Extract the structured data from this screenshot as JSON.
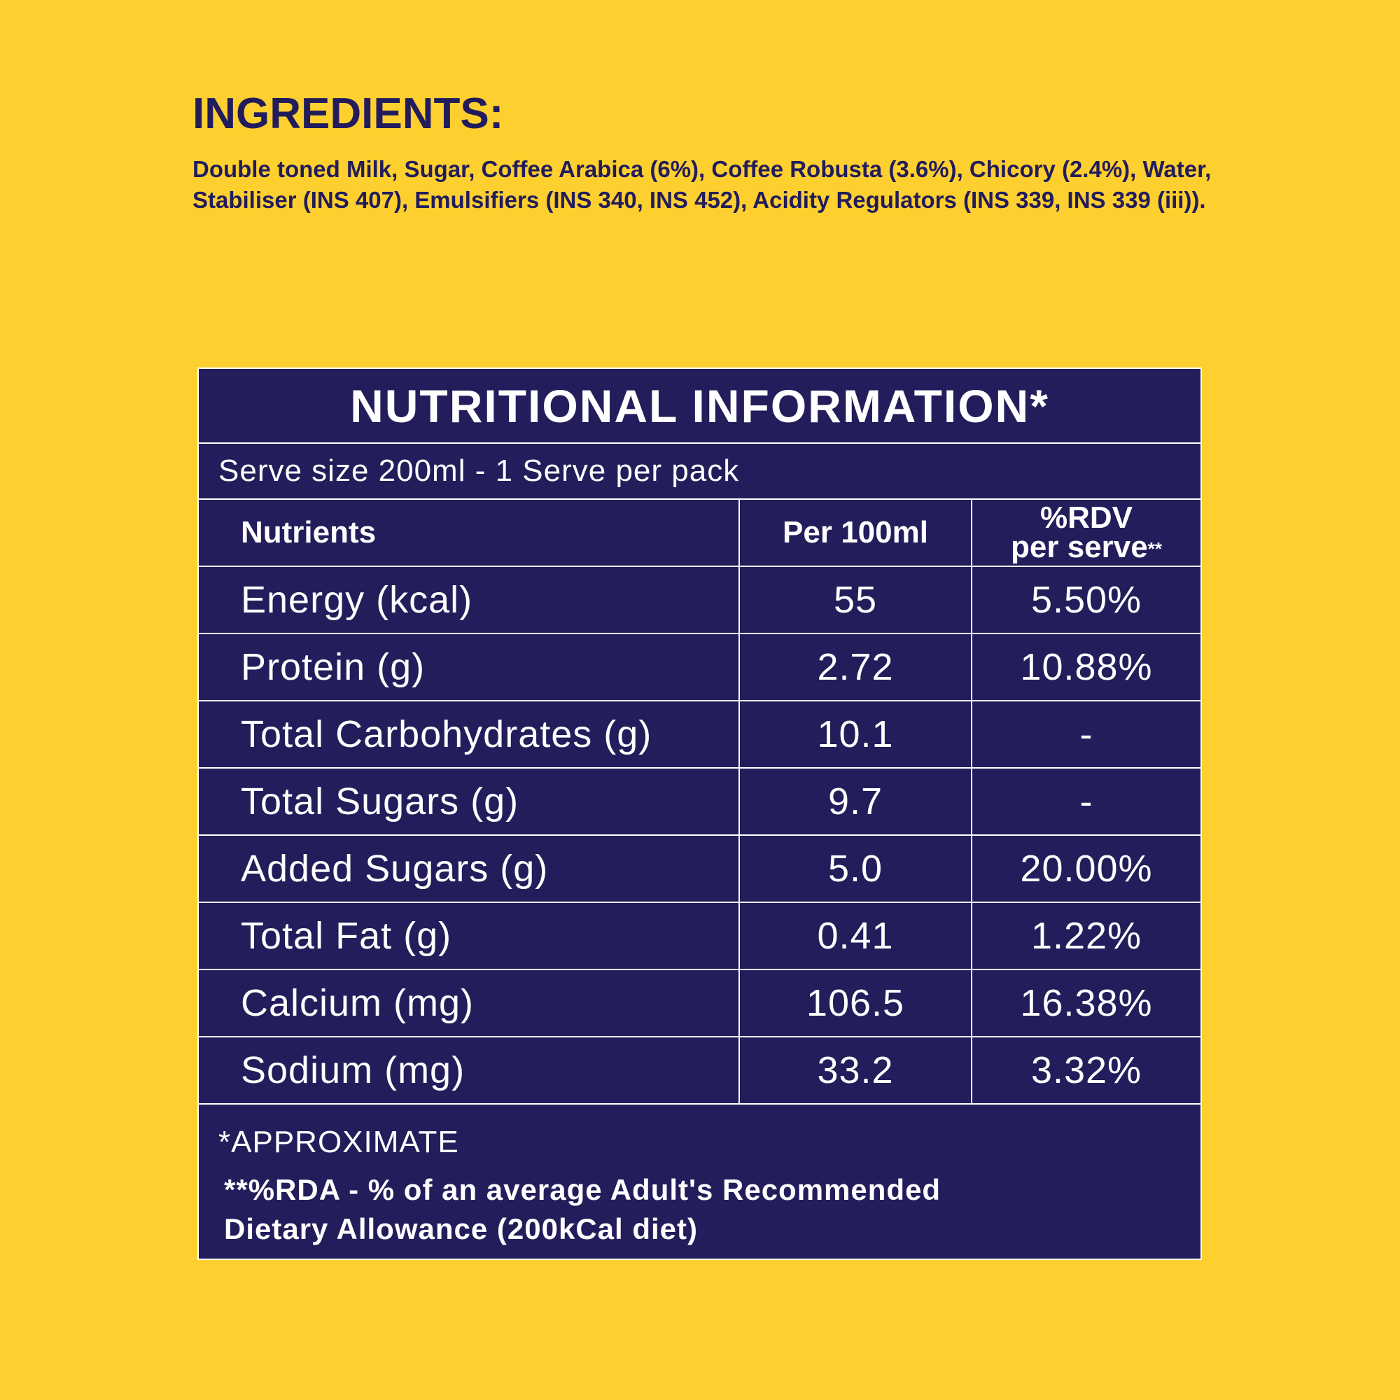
{
  "ingredients": {
    "heading": "INGREDIENTS:",
    "text": "Double toned Milk, Sugar, Coffee Arabica (6%), Coffee Robusta (3.6%), Chicory (2.4%), Water, Stabiliser (INS 407), Emulsifiers (INS 340, INS 452), Acidity Regulators (INS 339, INS 339 (iii))."
  },
  "nutrition": {
    "title": "NUTRITIONAL INFORMATION*",
    "serve": "Serve size 200ml - 1 Serve per pack",
    "headers": {
      "nutrients": "Nutrients",
      "per100": "Per 100ml",
      "rdv_line1": "%RDV",
      "rdv_line2": "per serve",
      "rdv_mark": "**"
    },
    "rows": [
      {
        "name": "Energy (kcal)",
        "per100": "55",
        "rdv": "5.50%"
      },
      {
        "name": "Protein (g)",
        "per100": "2.72",
        "rdv": "10.88%"
      },
      {
        "name": "Total Carbohydrates (g)",
        "per100": "10.1",
        "rdv": "-"
      },
      {
        "name": "Total Sugars (g)",
        "per100": "9.7",
        "rdv": "-"
      },
      {
        "name": "Added Sugars (g)",
        "per100": "5.0",
        "rdv": "20.00%"
      },
      {
        "name": "Total Fat (g)",
        "per100": "0.41",
        "rdv": "1.22%"
      },
      {
        "name": "Calcium (mg)",
        "per100": "106.5",
        "rdv": "16.38%"
      },
      {
        "name": "Sodium (mg)",
        "per100": "33.2",
        "rdv": "3.32%"
      }
    ],
    "footnote_approx": "*APPROXIMATE",
    "footnote_rda_line1": "**%RDA - % of an average Adult's Recommended",
    "footnote_rda_line2": "Dietary Allowance (200kCal diet)"
  },
  "colors": {
    "background": "#FED02F",
    "panel": "#231D5B",
    "ingredients_text": "#221C5C",
    "panel_text": "#FFFFFF"
  }
}
